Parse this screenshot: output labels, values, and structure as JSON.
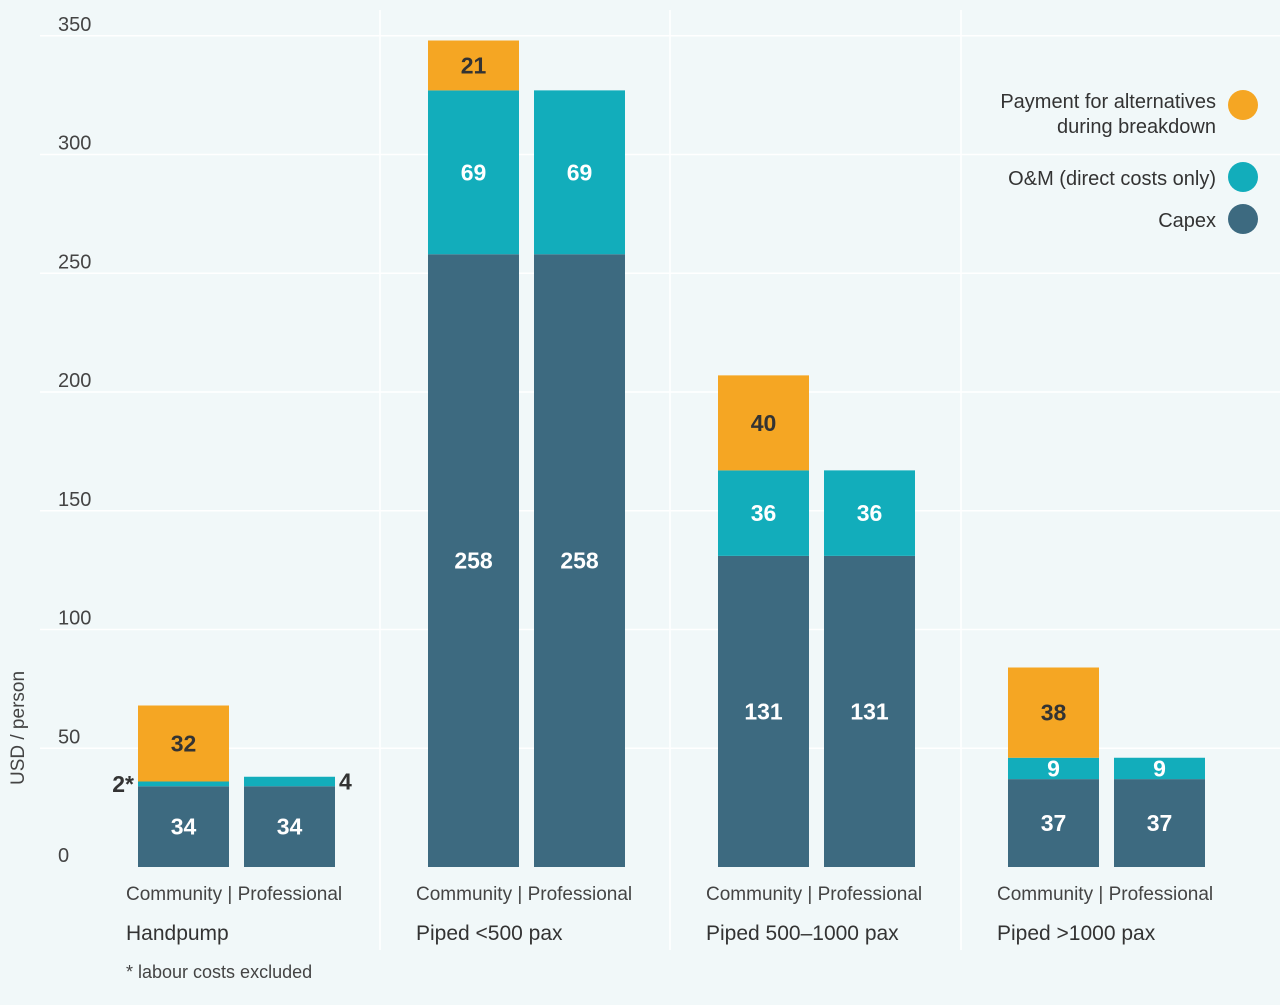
{
  "chart_data": {
    "type": "bar",
    "stacked": true,
    "ylabel": "USD / person",
    "ylim": [
      0,
      350
    ],
    "yticks": [
      0,
      50,
      100,
      150,
      200,
      250,
      300,
      350
    ],
    "grid": true,
    "legend_position": "top-right",
    "groups": [
      {
        "label": "Handpump",
        "sub_label": "Community | Professional"
      },
      {
        "label": "Piped <500 pax",
        "sub_label": "Community | Professional"
      },
      {
        "label": "Piped 500–1000 pax",
        "sub_label": "Community | Professional"
      },
      {
        "label": "Piped >1000 pax",
        "sub_label": "Community | Professional"
      }
    ],
    "categories": [
      "Handpump Community",
      "Handpump Professional",
      "Piped <500 pax Community",
      "Piped <500 pax Professional",
      "Piped 500–1000 pax Community",
      "Piped 500–1000 pax Professional",
      "Piped >1000 pax Community",
      "Piped >1000 pax Professional"
    ],
    "series": [
      {
        "name": "Capex",
        "color": "#3d6a80",
        "label_color": "#ffffff",
        "values": [
          34,
          34,
          258,
          258,
          131,
          131,
          37,
          37
        ]
      },
      {
        "name": "O&M (direct costs only)",
        "color": "#12adbb",
        "label_color": "#ffffff",
        "values": [
          2,
          4,
          69,
          69,
          36,
          36,
          9,
          9
        ]
      },
      {
        "name": "Payment for alternatives during breakdown",
        "legend_lines": [
          "Payment for alternatives",
          "during breakdown"
        ],
        "color": "#f5a623",
        "label_color": "#333333",
        "values": [
          32,
          0,
          21,
          0,
          40,
          0,
          38,
          0
        ]
      }
    ],
    "data_labels": [
      [
        "34",
        "34",
        "258",
        "258",
        "131",
        "131",
        "37",
        "37"
      ],
      [
        "2*",
        "4",
        "69",
        "69",
        "36",
        "36",
        "9",
        "9"
      ],
      [
        "32",
        "",
        "21",
        "",
        "40",
        "",
        "38",
        ""
      ]
    ],
    "footnote": "* labour costs excluded"
  }
}
